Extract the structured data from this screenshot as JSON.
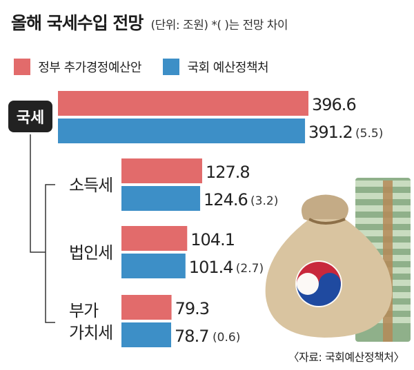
{
  "title": "올해 국세수입 전망",
  "subtitle": "(단위: 조원)  *(  )는 전망 차이",
  "legend": [
    {
      "label": "정부 추가경정예산안",
      "color": "#e26b6b"
    },
    {
      "label": "국회 예산정책처",
      "color": "#3d8fc7"
    }
  ],
  "source": "〈자료: 국회예산정책처〉",
  "colors": {
    "government": "#e26b6b",
    "assembly": "#3d8fc7",
    "badge": "#222222"
  },
  "chart_data": {
    "type": "bar",
    "orientation": "horizontal",
    "categories": [
      "국세",
      "소득세",
      "법인세",
      "부가가치세"
    ],
    "category_display": [
      [
        "국세"
      ],
      [
        "소득세"
      ],
      [
        "법인세"
      ],
      [
        "부가",
        "가치세"
      ]
    ],
    "series": [
      {
        "name": "정부 추가경정예산안",
        "values": [
          396.6,
          127.8,
          104.1,
          79.3
        ]
      },
      {
        "name": "국회 예산정책처",
        "values": [
          391.2,
          124.6,
          101.4,
          78.7
        ]
      }
    ],
    "value_labels": {
      "government": [
        "396.6",
        "127.8",
        "104.1",
        "79.3"
      ],
      "assembly": [
        "391.2",
        "124.6",
        "101.4",
        "78.7"
      ]
    },
    "differences": [
      "(5.5)",
      "(3.2)",
      "(2.7)",
      "(0.6)"
    ],
    "unit": "조원",
    "xlim": [
      0,
      396.6
    ]
  }
}
